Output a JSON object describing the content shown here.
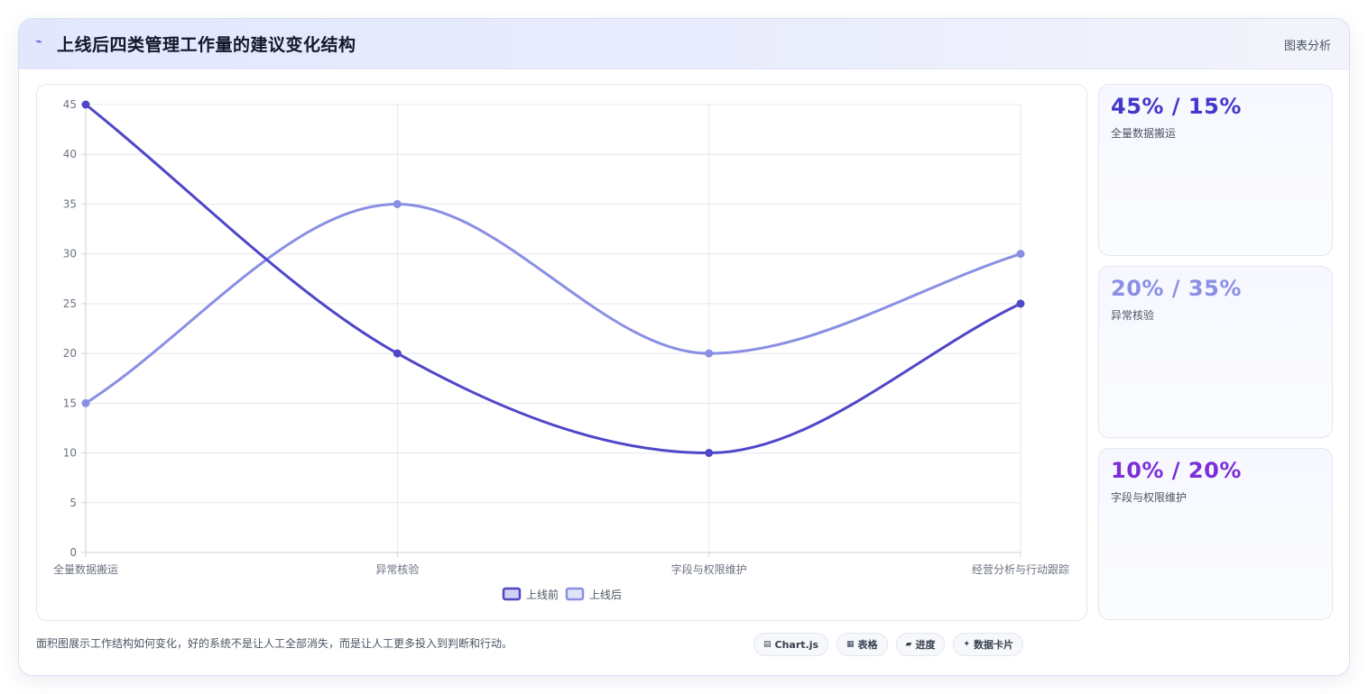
{
  "header": {
    "icon": "chart-line-icon",
    "title": "上线后四类管理工作量的建议变化结构",
    "action_label": "图表分析"
  },
  "chart_data": {
    "type": "line",
    "categories": [
      "全量数据搬运",
      "异常核验",
      "字段与权限维护",
      "经营分析与行动跟踪"
    ],
    "series": [
      {
        "name": "上线前",
        "values": [
          45,
          20,
          10,
          25
        ],
        "color": "#4f46c8"
      },
      {
        "name": "上线后",
        "values": [
          15,
          35,
          20,
          30
        ],
        "color": "#8a8fe4"
      }
    ],
    "ylim": [
      0,
      45
    ],
    "yticks": [
      0,
      5,
      10,
      15,
      20,
      25,
      30,
      35,
      40,
      45
    ],
    "grid": true,
    "legend": "bottom"
  },
  "side_cards": [
    {
      "value": "45% / 15%",
      "label": "全量数据搬运",
      "color": "#4338ca"
    },
    {
      "value": "20% / 35%",
      "label": "异常核验",
      "color": "#8b90e6"
    },
    {
      "value": "10% / 20%",
      "label": "字段与权限维护",
      "color": "#7c2fd6"
    }
  ],
  "footer": {
    "caption": "面积图展示工作结构如何变化，好的系统不是让人工全部消失，而是让人工更多投入到判断和行动。",
    "chips": [
      {
        "icon": "chart-icon",
        "glyph": "▤",
        "label": "Chart.js"
      },
      {
        "icon": "table-icon",
        "glyph": "▦",
        "label": "表格"
      },
      {
        "icon": "progress-icon",
        "glyph": "▰",
        "label": "进度"
      },
      {
        "icon": "sparkle-icon",
        "glyph": "✦",
        "label": "数据卡片"
      }
    ]
  }
}
